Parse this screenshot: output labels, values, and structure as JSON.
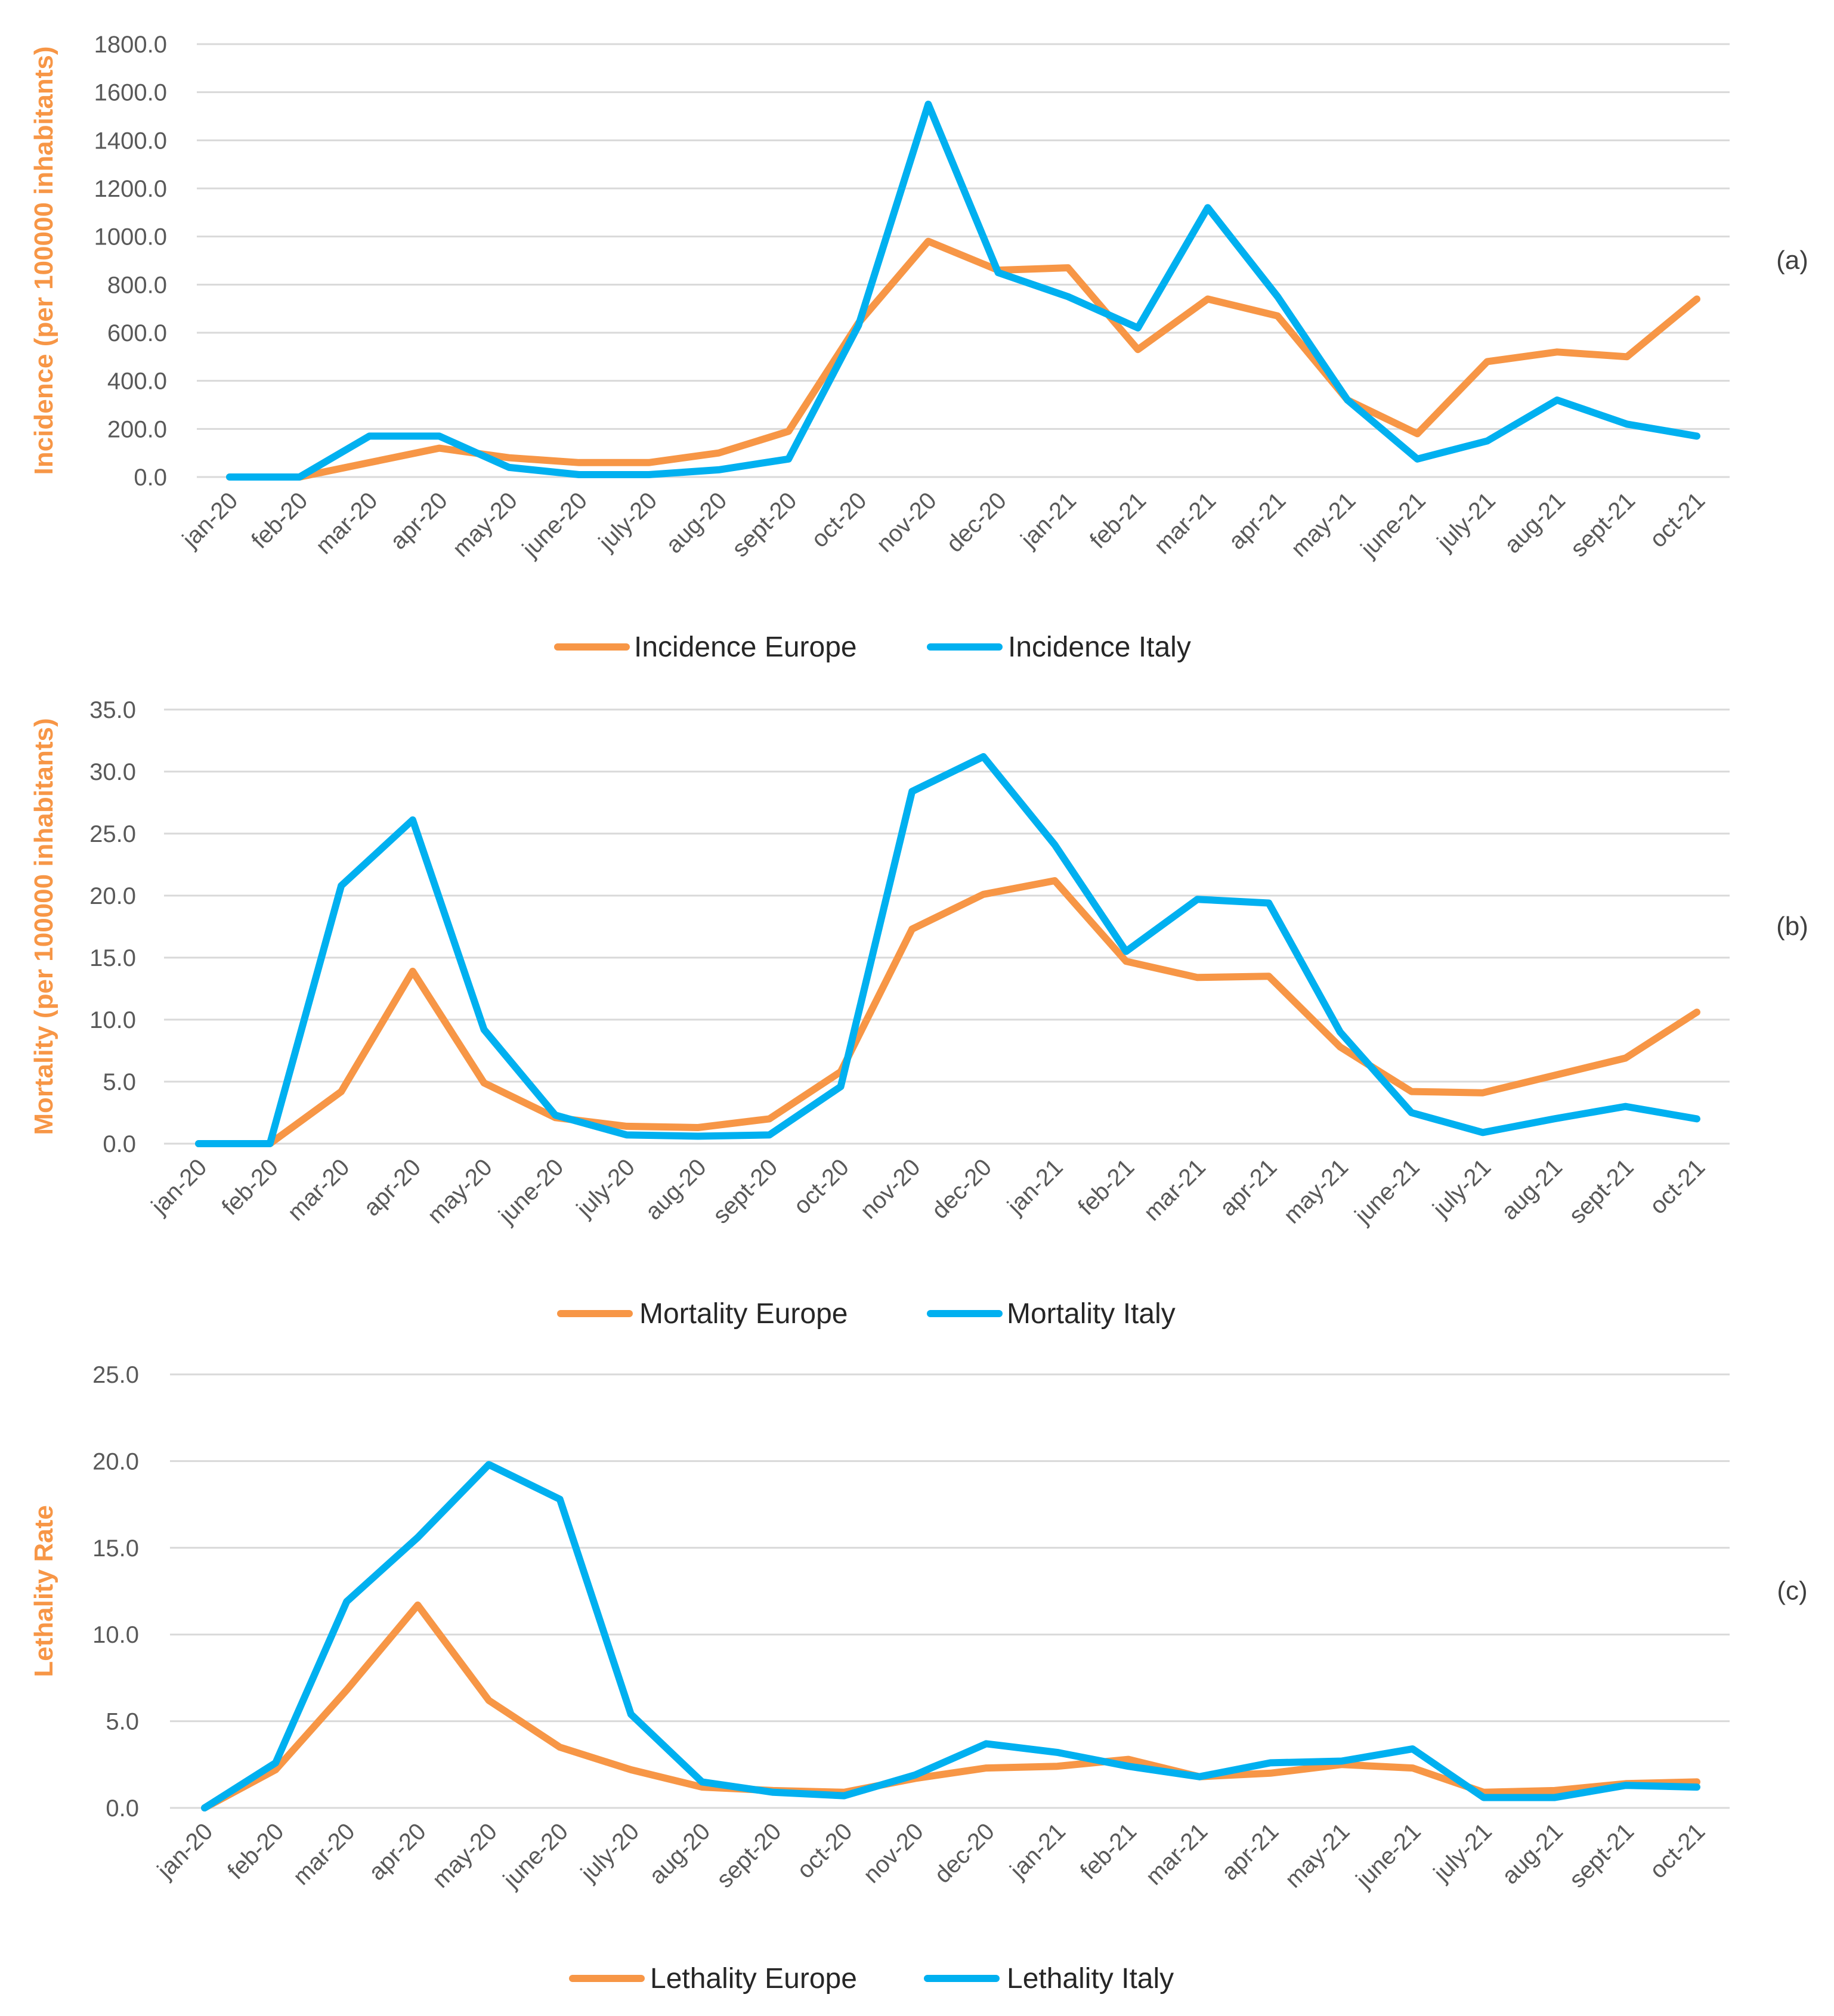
{
  "colors": {
    "europe": "#f79646",
    "italy": "#00b0f0",
    "grid": "#d9d9d9",
    "tick_text": "#595959",
    "axis_title": "#f79646"
  },
  "chart_data": [
    {
      "type": "line",
      "panel_label": "(a)",
      "ylabel": "Incidence (per 100000 inhabitants)",
      "ylim": [
        0,
        1800
      ],
      "yticks": [
        "0.0",
        "200.0",
        "400.0",
        "600.0",
        "800.0",
        "1000.0",
        "1200.0",
        "1400.0",
        "1600.0",
        "1800.0"
      ],
      "grid": true,
      "legend": "bottom",
      "categories": [
        "jan-20",
        "feb-20",
        "mar-20",
        "apr-20",
        "may-20",
        "june-20",
        "july-20",
        "aug-20",
        "sept-20",
        "oct-20",
        "nov-20",
        "dec-20",
        "jan-21",
        "feb-21",
        "mar-21",
        "apr-21",
        "may-21",
        "june-21",
        "july-21",
        "aug-21",
        "sept-21",
        "oct-21"
      ],
      "series": [
        {
          "name": "Incidence Europe",
          "color_key": "europe",
          "values": [
            0,
            0,
            60,
            120,
            80,
            60,
            60,
            100,
            190,
            640,
            980,
            860,
            870,
            530,
            740,
            670,
            320,
            180,
            480,
            520,
            500,
            740
          ]
        },
        {
          "name": "Incidence Italy",
          "color_key": "italy",
          "values": [
            0,
            0,
            170,
            170,
            40,
            10,
            10,
            30,
            75,
            630,
            1550,
            850,
            750,
            620,
            1120,
            750,
            320,
            75,
            150,
            320,
            220,
            170
          ]
        }
      ]
    },
    {
      "type": "line",
      "panel_label": "(b)",
      "ylabel": "Mortality (per 100000 inhabitants)",
      "ylim": [
        0,
        35
      ],
      "yticks": [
        "0.0",
        "5.0",
        "10.0",
        "15.0",
        "20.0",
        "25.0",
        "30.0",
        "35.0"
      ],
      "grid": true,
      "legend": "bottom",
      "categories": [
        "jan-20",
        "feb-20",
        "mar-20",
        "apr-20",
        "may-20",
        "june-20",
        "july-20",
        "aug-20",
        "sept-20",
        "oct-20",
        "nov-20",
        "dec-20",
        "jan-21",
        "feb-21",
        "mar-21",
        "apr-21",
        "may-21",
        "june-21",
        "july-21",
        "aug-21",
        "sept-21",
        "oct-21"
      ],
      "series": [
        {
          "name": "Mortality Europe",
          "color_key": "europe",
          "values": [
            0,
            0,
            4.2,
            13.9,
            4.9,
            2.1,
            1.4,
            1.3,
            2.0,
            5.8,
            17.3,
            20.1,
            21.2,
            14.7,
            13.4,
            13.5,
            7.8,
            4.2,
            4.1,
            5.5,
            6.9,
            10.6
          ]
        },
        {
          "name": "Mortality Italy",
          "color_key": "italy",
          "values": [
            0,
            0,
            20.8,
            26.1,
            9.2,
            2.3,
            0.7,
            0.6,
            0.7,
            4.6,
            28.4,
            31.2,
            24.1,
            15.5,
            19.7,
            19.4,
            9.0,
            2.5,
            0.9,
            2.0,
            3.0,
            2.0
          ]
        }
      ]
    },
    {
      "type": "line",
      "panel_label": "(c)",
      "ylabel": "Lethality Rate",
      "ylim": [
        0,
        25
      ],
      "yticks": [
        "0.0",
        "5.0",
        "10.0",
        "15.0",
        "20.0",
        "25.0"
      ],
      "grid": true,
      "legend": "bottom",
      "categories": [
        "jan-20",
        "feb-20",
        "mar-20",
        "apr-20",
        "may-20",
        "june-20",
        "july-20",
        "aug-20",
        "sept-20",
        "oct-20",
        "nov-20",
        "dec-20",
        "jan-21",
        "feb-21",
        "mar-21",
        "apr-21",
        "may-21",
        "june-21",
        "july-21",
        "aug-21",
        "sept-21",
        "oct-21"
      ],
      "series": [
        {
          "name": "Lethality Europe",
          "color_key": "europe",
          "values": [
            0,
            2.2,
            6.8,
            11.7,
            6.2,
            3.5,
            2.2,
            1.2,
            1.0,
            0.9,
            1.7,
            2.3,
            2.4,
            2.8,
            1.8,
            2.0,
            2.5,
            2.3,
            0.9,
            1.0,
            1.4,
            1.5
          ]
        },
        {
          "name": "Lethality Italy",
          "color_key": "italy",
          "values": [
            0,
            2.6,
            11.9,
            15.6,
            19.8,
            17.8,
            5.4,
            1.5,
            0.9,
            0.7,
            1.9,
            3.7,
            3.2,
            2.4,
            1.8,
            2.6,
            2.7,
            3.4,
            0.6,
            0.6,
            1.3,
            1.2
          ]
        }
      ]
    }
  ]
}
